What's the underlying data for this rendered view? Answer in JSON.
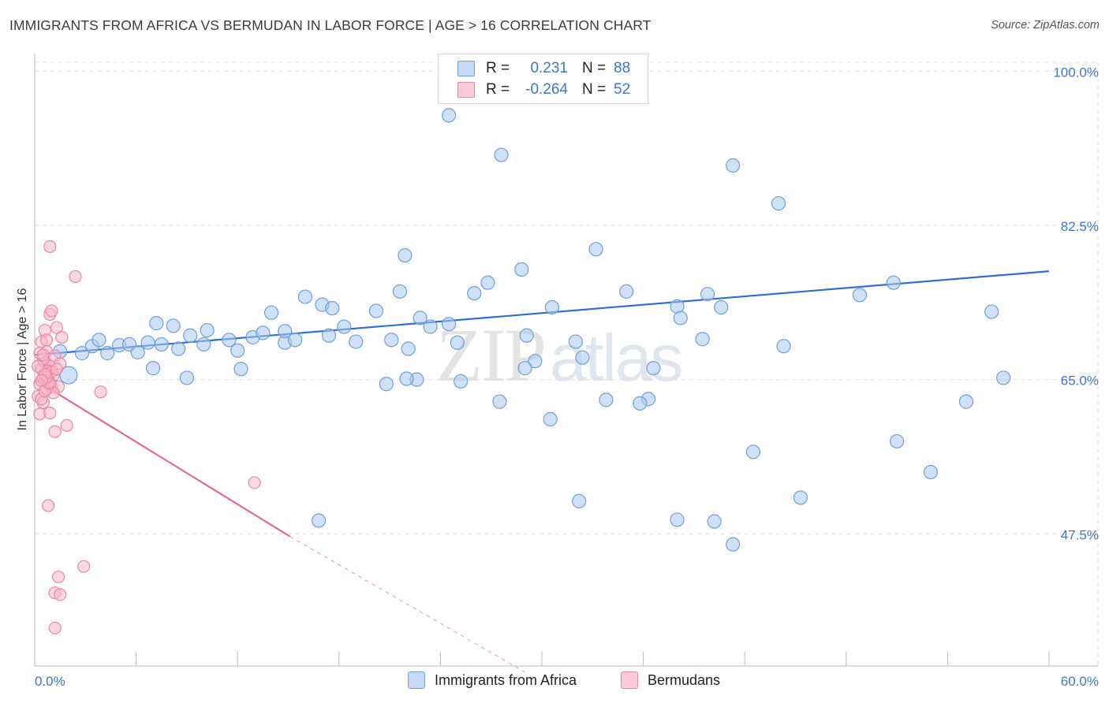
{
  "header": {
    "title": "IMMIGRANTS FROM AFRICA VS BERMUDAN IN LABOR FORCE | AGE > 16 CORRELATION CHART",
    "source": "Source: ZipAtlas.com"
  },
  "watermark": {
    "zip": "ZIP",
    "atlas": "atlas"
  },
  "legend": {
    "rows": [
      {
        "r_label": "R =",
        "r_value": "0.231",
        "n_label": "N =",
        "n_value": "88",
        "color": "#a8c8f0"
      },
      {
        "r_label": "R =",
        "r_value": "-0.264",
        "n_label": "N =",
        "n_value": "52",
        "color": "#f7b6c8"
      }
    ]
  },
  "bottom_legend": {
    "items": [
      {
        "label": "Immigrants from Africa",
        "color": "#a8c8f0"
      },
      {
        "label": "Bermudans",
        "color": "#f7b6c8"
      }
    ]
  },
  "colors": {
    "africa_fill": "#a8c8f0",
    "africa_stroke": "#6f9fd8",
    "africa_line": "#2f6fd0",
    "bermudan_fill": "#f7b6c8",
    "bermudan_stroke": "#e886a6",
    "bermudan_line": "#e46a96",
    "grid": "#dedede",
    "tick_text": "#3a78c8"
  },
  "chart_data": {
    "type": "scatter",
    "title": "IMMIGRANTS FROM AFRICA VS BERMUDAN IN LABOR FORCE | AGE > 16 CORRELATION CHART",
    "xlabel": "",
    "ylabel": "In Labor Force | Age > 16",
    "xlim": [
      0,
      60
    ],
    "ylim": [
      32.5,
      102
    ],
    "x_tick_labels": [
      "0.0%",
      "60.0%"
    ],
    "y_ticks": [
      47.5,
      65.0,
      82.5,
      100.0
    ],
    "y_tick_labels": [
      "47.5%",
      "65.0%",
      "82.5%",
      "100.0%"
    ],
    "grid": true,
    "legend_placement": "top-center",
    "series": [
      {
        "name": "Immigrants from Africa",
        "trend": {
          "x": [
            0.0,
            60.0
          ],
          "y": [
            67.8,
            77.3
          ],
          "style": "solid"
        },
        "points": [
          [
            2.0,
            65.5
          ],
          [
            1.5,
            68.2
          ],
          [
            2.8,
            68.0
          ],
          [
            3.4,
            68.8
          ],
          [
            3.8,
            69.5
          ],
          [
            4.3,
            68.0
          ],
          [
            5.0,
            68.9
          ],
          [
            5.6,
            69.0
          ],
          [
            6.1,
            68.1
          ],
          [
            6.7,
            69.2
          ],
          [
            7.2,
            71.4
          ],
          [
            7.5,
            69.0
          ],
          [
            8.2,
            71.1
          ],
          [
            8.5,
            68.5
          ],
          [
            9.2,
            70.0
          ],
          [
            10.2,
            70.6
          ],
          [
            11.5,
            69.5
          ],
          [
            12.0,
            68.3
          ],
          [
            12.9,
            69.8
          ],
          [
            13.5,
            70.3
          ],
          [
            14.0,
            72.6
          ],
          [
            14.8,
            69.2
          ],
          [
            15.4,
            69.5
          ],
          [
            16.0,
            74.4
          ],
          [
            17.0,
            73.5
          ],
          [
            17.4,
            70.0
          ],
          [
            18.3,
            71.0
          ],
          [
            19.0,
            69.3
          ],
          [
            20.2,
            72.8
          ],
          [
            21.1,
            69.5
          ],
          [
            21.6,
            75.0
          ],
          [
            22.1,
            68.5
          ],
          [
            22.8,
            72.0
          ],
          [
            23.4,
            71.0
          ],
          [
            24.5,
            71.3
          ],
          [
            25.0,
            69.2
          ],
          [
            26.0,
            74.8
          ],
          [
            26.8,
            76.0
          ],
          [
            28.8,
            77.5
          ],
          [
            29.1,
            70.0
          ],
          [
            29.6,
            67.1
          ],
          [
            30.6,
            73.2
          ],
          [
            32.4,
            67.5
          ],
          [
            33.2,
            79.8
          ],
          [
            21.9,
            79.1
          ],
          [
            20.8,
            64.5
          ],
          [
            25.2,
            64.8
          ],
          [
            22.6,
            65.0
          ],
          [
            36.3,
            62.8
          ],
          [
            32.0,
            69.3
          ],
          [
            35.8,
            62.3
          ],
          [
            38.0,
            73.3
          ],
          [
            39.5,
            69.6
          ],
          [
            36.6,
            66.3
          ],
          [
            40.6,
            73.2
          ],
          [
            44.3,
            68.8
          ],
          [
            45.3,
            51.6
          ],
          [
            24.5,
            95.0
          ],
          [
            27.6,
            90.5
          ],
          [
            29.0,
            66.3
          ],
          [
            33.8,
            62.7
          ],
          [
            32.2,
            51.2
          ],
          [
            41.3,
            46.3
          ],
          [
            48.8,
            74.6
          ],
          [
            50.8,
            76.0
          ],
          [
            51.0,
            58.0
          ],
          [
            38.0,
            49.1
          ],
          [
            53.0,
            54.5
          ],
          [
            42.5,
            56.8
          ],
          [
            35.0,
            75.0
          ],
          [
            40.2,
            48.9
          ],
          [
            41.3,
            89.3
          ],
          [
            44.0,
            85.0
          ],
          [
            38.2,
            72.0
          ],
          [
            30.5,
            60.5
          ],
          [
            27.5,
            62.5
          ],
          [
            16.8,
            49.0
          ],
          [
            39.8,
            74.7
          ],
          [
            55.1,
            62.5
          ],
          [
            57.3,
            65.2
          ],
          [
            9.0,
            65.2
          ],
          [
            7.0,
            66.3
          ],
          [
            12.2,
            66.2
          ],
          [
            10.0,
            69.0
          ],
          [
            14.8,
            70.5
          ],
          [
            22.0,
            65.1
          ],
          [
            17.6,
            73.1
          ],
          [
            56.6,
            72.7
          ]
        ]
      },
      {
        "name": "Bermudans",
        "trend": {
          "x": [
            0.0,
            15.1
          ],
          "y": [
            65.0,
            47.2
          ],
          "style": "solid",
          "extrapolated_to": [
            29.0,
            31.8
          ]
        },
        "points": [
          [
            0.3,
            64.5
          ],
          [
            0.5,
            65.2
          ],
          [
            0.7,
            63.9
          ],
          [
            0.4,
            66.2
          ],
          [
            0.6,
            67.0
          ],
          [
            0.8,
            65.8
          ],
          [
            1.0,
            64.2
          ],
          [
            0.2,
            63.1
          ],
          [
            0.9,
            66.5
          ],
          [
            1.1,
            65.5
          ],
          [
            0.5,
            62.4
          ],
          [
            0.3,
            61.1
          ],
          [
            0.7,
            68.2
          ],
          [
            1.2,
            67.7
          ],
          [
            0.4,
            69.3
          ],
          [
            0.6,
            70.6
          ],
          [
            1.3,
            70.9
          ],
          [
            0.9,
            72.4
          ],
          [
            1.0,
            72.8
          ],
          [
            0.5,
            67.3
          ],
          [
            0.8,
            64.7
          ],
          [
            1.4,
            64.2
          ],
          [
            0.2,
            66.5
          ],
          [
            0.6,
            65.0
          ],
          [
            1.5,
            66.8
          ],
          [
            0.4,
            62.8
          ],
          [
            0.9,
            61.2
          ],
          [
            0.7,
            69.5
          ],
          [
            1.1,
            63.5
          ],
          [
            0.3,
            68.0
          ],
          [
            1.6,
            69.8
          ],
          [
            0.8,
            66.0
          ],
          [
            0.5,
            67.8
          ],
          [
            1.0,
            65.9
          ],
          [
            0.6,
            63.7
          ],
          [
            1.9,
            59.8
          ],
          [
            0.9,
            64.6
          ],
          [
            1.2,
            59.1
          ],
          [
            0.7,
            65.3
          ],
          [
            1.3,
            66.2
          ],
          [
            2.4,
            76.7
          ],
          [
            0.9,
            80.1
          ],
          [
            0.8,
            50.7
          ],
          [
            1.4,
            42.6
          ],
          [
            3.9,
            63.6
          ],
          [
            13.0,
            53.3
          ],
          [
            1.2,
            40.8
          ],
          [
            1.5,
            40.6
          ],
          [
            2.9,
            43.8
          ],
          [
            1.2,
            36.8
          ],
          [
            0.6,
            65.6
          ],
          [
            0.4,
            64.9
          ]
        ]
      }
    ]
  }
}
